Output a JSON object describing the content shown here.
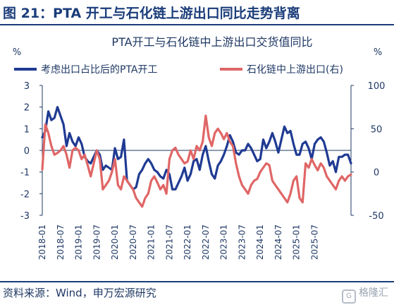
{
  "figure_title": "图 21：PTA 开工与石化链上游出口同比走势背离",
  "source_note": "资料来源：Wind，申万宏源研究",
  "watermark": "格隆汇",
  "chart_data": {
    "type": "line",
    "title": "PTA开工与石化链中上游出口交货值同比",
    "left_unit": "%",
    "right_unit": "%",
    "left_ylim": [
      -3,
      3
    ],
    "left_ticks": [
      "3",
      "2",
      "1",
      "0",
      "-1",
      "-2",
      "-3"
    ],
    "right_ylim": [
      -50,
      100
    ],
    "right_ticks": [
      "100",
      "50",
      "0",
      "-50"
    ],
    "x_start": "2018-01",
    "x_end": "2025-07",
    "x_ticks": [
      "2018-01",
      "2018-07",
      "2019-01",
      "2019-07",
      "2020-01",
      "2020-07",
      "2021-01",
      "2021-07",
      "2022-01",
      "2022-07",
      "2023-01",
      "2023-07",
      "2024-01",
      "2024-07",
      "2025-01",
      "2025-07"
    ],
    "zero_line": true,
    "legend_position": "top",
    "colors": {
      "series1": "#1f3a93",
      "series2": "#e06666",
      "axis_text": "#1f3864"
    },
    "series": [
      {
        "name": "考虑出口占比后的PTA开工",
        "axis": "left",
        "color": "#1f3a93",
        "values": [
          0.6,
          0.9,
          1.8,
          1.4,
          1.5,
          2.0,
          1.6,
          1.2,
          0.2,
          0.8,
          0.4,
          0.2,
          0.6,
          0.3,
          -0.3,
          -0.5,
          -0.6,
          -0.3,
          0.0,
          -0.2,
          -0.9,
          -0.7,
          -0.8,
          -0.9,
          0.1,
          -0.4,
          -0.3,
          0.5,
          -1.4,
          -1.6,
          -1.8,
          -1.7,
          -1.1,
          -0.9,
          -0.6,
          -0.4,
          -0.6,
          -0.9,
          -1.0,
          -1.2,
          -1.3,
          -0.9,
          -1.1,
          -1.8,
          -1.8,
          -1.5,
          -1.2,
          -0.8,
          -1.4,
          -1.1,
          -0.5,
          -0.4,
          -0.9,
          -0.2,
          0.2,
          -0.5,
          -1.1,
          -1.3,
          -0.7,
          -0.5,
          -0.2,
          0.2,
          0.7,
          0.4,
          -0.1,
          -0.2,
          0.0,
          0.0,
          0.3,
          0.1,
          -0.2,
          -0.5,
          -0.4,
          0.5,
          0.1,
          0.4,
          0.8,
          0.4,
          -0.1,
          0.5,
          1.1,
          0.8,
          0.9,
          0.3,
          -0.2,
          -0.2,
          0.3,
          0.4,
          0.1,
          -0.4,
          0.3,
          0.5,
          0.6,
          0.4,
          -0.1,
          -0.7,
          -0.5,
          -1.0,
          -0.3,
          -0.3,
          -0.2,
          -0.2,
          -0.6
        ]
      },
      {
        "name": "石化链中上游出口(右)",
        "axis": "right",
        "color": "#e06666",
        "values": [
          3,
          55,
          45,
          30,
          20,
          22,
          25,
          30,
          20,
          5,
          25,
          28,
          25,
          15,
          20,
          8,
          -5,
          10,
          25,
          15,
          -20,
          -15,
          -10,
          0,
          15,
          -15,
          -20,
          -5,
          -10,
          -15,
          -20,
          -30,
          -35,
          -40,
          -30,
          -25,
          -10,
          -5,
          -12,
          -20,
          -15,
          -25,
          15,
          25,
          28,
          20,
          15,
          10,
          12,
          25,
          15,
          30,
          25,
          35,
          65,
          40,
          30,
          45,
          50,
          45,
          38,
          45,
          35,
          30,
          10,
          -5,
          -15,
          -20,
          -25,
          -15,
          -10,
          -8,
          0,
          5,
          10,
          8,
          -10,
          -15,
          -20,
          -25,
          -30,
          -35,
          -25,
          -10,
          -5,
          -30,
          -35,
          10,
          5,
          15,
          8,
          2,
          10,
          5,
          -5,
          -10,
          -15,
          -20,
          -10,
          -5,
          -10,
          -5,
          -3
        ]
      }
    ]
  }
}
